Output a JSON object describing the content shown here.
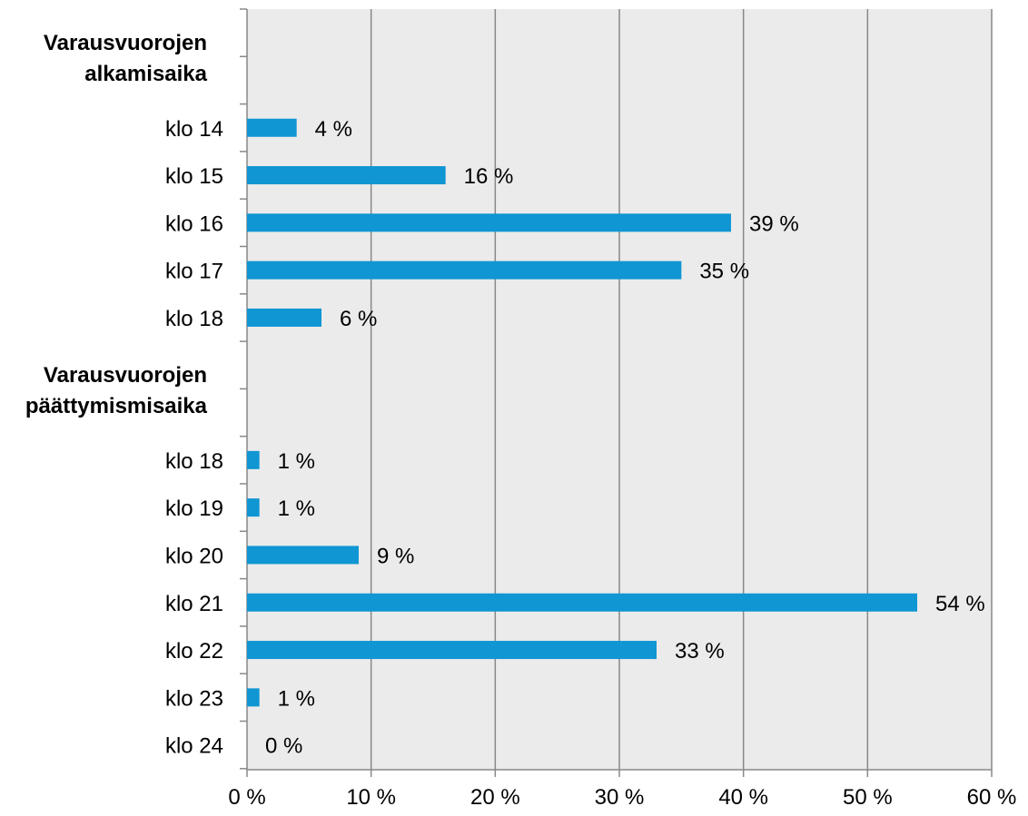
{
  "chart_data": {
    "type": "bar",
    "orientation": "horizontal",
    "groups": [
      {
        "label": "Varausvuorojen\nalkamisaika",
        "items": [
          {
            "category": "klo 14",
            "value": 4,
            "label": "4 %"
          },
          {
            "category": "klo 15",
            "value": 16,
            "label": "16 %"
          },
          {
            "category": "klo 16",
            "value": 39,
            "label": "39 %"
          },
          {
            "category": "klo 17",
            "value": 35,
            "label": "35 %"
          },
          {
            "category": "klo 18",
            "value": 6,
            "label": "6 %"
          }
        ]
      },
      {
        "label": "Varausvuorojen\npäättymismisaika",
        "items": [
          {
            "category": "klo 18",
            "value": 1,
            "label": "1 %"
          },
          {
            "category": "klo 19",
            "value": 1,
            "label": "1 %"
          },
          {
            "category": "klo 20",
            "value": 9,
            "label": "9 %"
          },
          {
            "category": "klo 21",
            "value": 54,
            "label": "54 %"
          },
          {
            "category": "klo 22",
            "value": 33,
            "label": "33 %"
          },
          {
            "category": "klo 23",
            "value": 1,
            "label": "1 %"
          },
          {
            "category": "klo 24",
            "value": 0,
            "label": "0 %"
          }
        ]
      }
    ],
    "xlim": [
      0,
      60
    ],
    "xticks": [
      0,
      10,
      20,
      30,
      40,
      50,
      60
    ],
    "xtick_labels": [
      "0 %",
      "10 %",
      "20 %",
      "30 %",
      "40 %",
      "50 %",
      "60 %"
    ],
    "grid": "vertical",
    "legend": "none",
    "colors": {
      "bar": "#0f96d3",
      "plot_background": "#ebebeb",
      "grid": "#888888",
      "axis": "#888888"
    }
  }
}
